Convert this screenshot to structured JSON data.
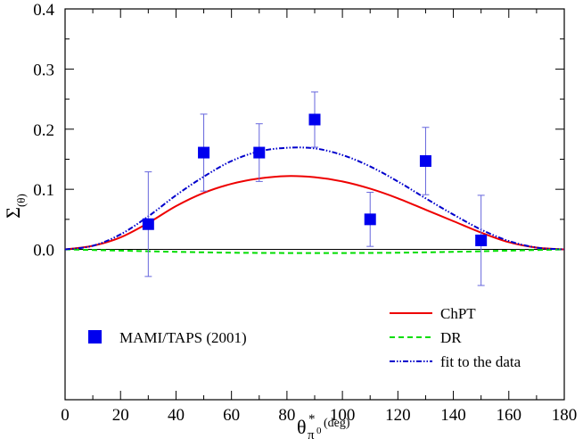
{
  "chart_data": {
    "type": "scatter",
    "title": "",
    "xlabel": {
      "main": "θ",
      "superscript": "*",
      "subscript": "π",
      "subsub": "0",
      "unit": "(deg)"
    },
    "ylabel": {
      "main": "Σ",
      "subscript": "(θ)"
    },
    "xlim": [
      0,
      180
    ],
    "ylim": [
      -0.25,
      0.4
    ],
    "x_ticks": [
      0,
      20,
      40,
      60,
      80,
      100,
      120,
      140,
      160,
      180
    ],
    "x_tick_labels": [
      "0",
      "20",
      "40",
      "60",
      "80",
      "100",
      "120",
      "140",
      "160",
      "180"
    ],
    "y_ticks": [
      0.0,
      0.1,
      0.2,
      0.3,
      0.4
    ],
    "y_tick_labels": [
      "0.0",
      "0.1",
      "0.2",
      "0.3",
      "0.4"
    ],
    "grid": false,
    "zero_line": true,
    "data_points": {
      "name": "MAMI/TAPS (2001)",
      "color": "#0000ee",
      "x": [
        30,
        50,
        70,
        90,
        110,
        130,
        150
      ],
      "y": [
        0.042,
        0.161,
        0.161,
        0.216,
        0.05,
        0.147,
        0.015
      ],
      "err": [
        0.087,
        0.064,
        0.048,
        0.046,
        0.045,
        0.056,
        0.075
      ]
    },
    "series": [
      {
        "name": "ChPT",
        "color": "#ee0000",
        "style": "solid",
        "x": [
          0,
          10,
          20,
          30,
          40,
          50,
          60,
          70,
          80,
          90,
          100,
          110,
          120,
          130,
          140,
          150,
          160,
          170,
          180
        ],
        "y": [
          0,
          0.006,
          0.02,
          0.044,
          0.072,
          0.094,
          0.109,
          0.118,
          0.122,
          0.12,
          0.113,
          0.101,
          0.085,
          0.066,
          0.047,
          0.028,
          0.012,
          0.003,
          0
        ]
      },
      {
        "name": "DR",
        "color": "#00dd00",
        "style": "dashed",
        "x": [
          0,
          20,
          40,
          60,
          80,
          100,
          120,
          140,
          160,
          180
        ],
        "y": [
          0,
          -0.002,
          -0.004,
          -0.0055,
          -0.006,
          -0.006,
          -0.0055,
          -0.004,
          -0.002,
          0
        ]
      },
      {
        "name": "fit to the data",
        "color": "#0000cc",
        "style": "dashdotdot",
        "x": [
          0,
          10,
          20,
          30,
          40,
          50,
          60,
          70,
          80,
          90,
          100,
          110,
          120,
          130,
          140,
          150,
          160,
          170,
          180
        ],
        "y": [
          0,
          0.006,
          0.025,
          0.055,
          0.09,
          0.121,
          0.147,
          0.163,
          0.169,
          0.168,
          0.157,
          0.138,
          0.113,
          0.085,
          0.058,
          0.033,
          0.014,
          0.003,
          0
        ]
      }
    ],
    "legend": {
      "placement": "bottom",
      "entries": [
        "ChPT",
        "DR",
        "fit to the data",
        "MAMI/TAPS (2001)"
      ]
    }
  }
}
